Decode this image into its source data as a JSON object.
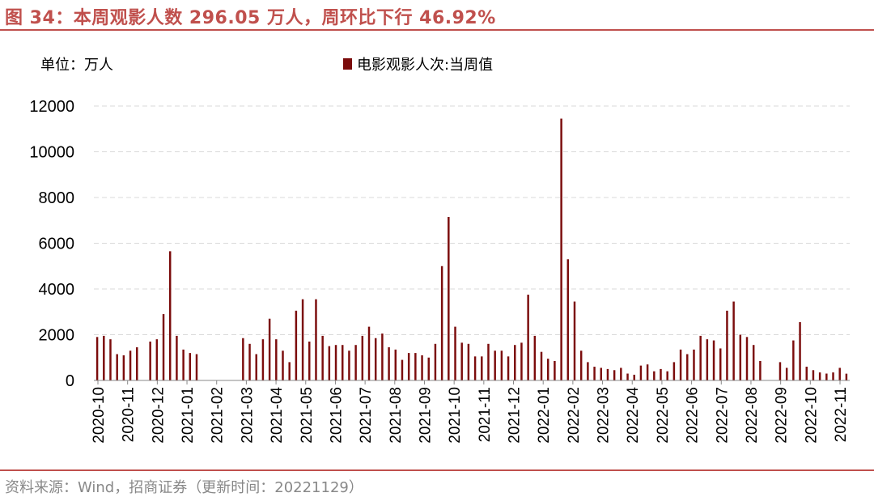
{
  "header": {
    "title": "图 34：本周观影人数 296.05 万人，周环比下行 46.92%"
  },
  "unit": "单位：万人",
  "legend": {
    "label": "电影观影人次:当周值"
  },
  "colors": {
    "accent": "#C0504D",
    "bar": "#7B0C0C"
  },
  "source": "资料来源：Wind，招商证券（更新时间：20221129）",
  "chart_data": {
    "type": "bar",
    "title": "",
    "xlabel": "",
    "ylabel": "",
    "ylim": [
      0,
      12000
    ],
    "yticks": [
      "0",
      "2000",
      "4000",
      "6000",
      "8000",
      "10000",
      "12000"
    ],
    "xticks": [
      "2020-10",
      "2020-11",
      "2020-12",
      "2021-01",
      "2021-02",
      "2021-03",
      "2021-04",
      "2021-05",
      "2021-06",
      "2021-07",
      "2021-08",
      "2021-09",
      "2021-10",
      "2021-11",
      "2021-12",
      "2022-01",
      "2022-02",
      "2022-03",
      "2022-04",
      "2022-05",
      "2022-06",
      "2022-07",
      "2022-08",
      "2022-09",
      "2022-10",
      "2022-11"
    ],
    "grid": true,
    "legend_position": "top",
    "series": [
      {
        "name": "电影观影人次:当周值",
        "values": [
          1900,
          1950,
          1800,
          1150,
          1100,
          1300,
          1450,
          null,
          1700,
          1800,
          2900,
          5650,
          1950,
          1350,
          1200,
          1150,
          null,
          null,
          null,
          null,
          null,
          null,
          1850,
          1600,
          1150,
          1800,
          2700,
          1800,
          1300,
          800,
          3050,
          3550,
          1700,
          3550,
          1950,
          1500,
          1550,
          1550,
          1300,
          1550,
          1950,
          2350,
          1850,
          2050,
          1450,
          1350,
          900,
          1200,
          1200,
          1100,
          1000,
          1600,
          5000,
          7150,
          2350,
          1650,
          1600,
          1050,
          1050,
          1600,
          1300,
          1300,
          1050,
          1550,
          1650,
          3750,
          1950,
          1250,
          950,
          850,
          11450,
          5300,
          3450,
          1300,
          800,
          600,
          550,
          500,
          450,
          550,
          300,
          250,
          650,
          700,
          400,
          500,
          400,
          800,
          1350,
          1150,
          1350,
          1950,
          1800,
          1750,
          1400,
          3050,
          3450,
          2000,
          1900,
          1550,
          850,
          null,
          null,
          800,
          550,
          1750,
          2550,
          600,
          450,
          350,
          300,
          350,
          550,
          296.05
        ]
      }
    ]
  }
}
